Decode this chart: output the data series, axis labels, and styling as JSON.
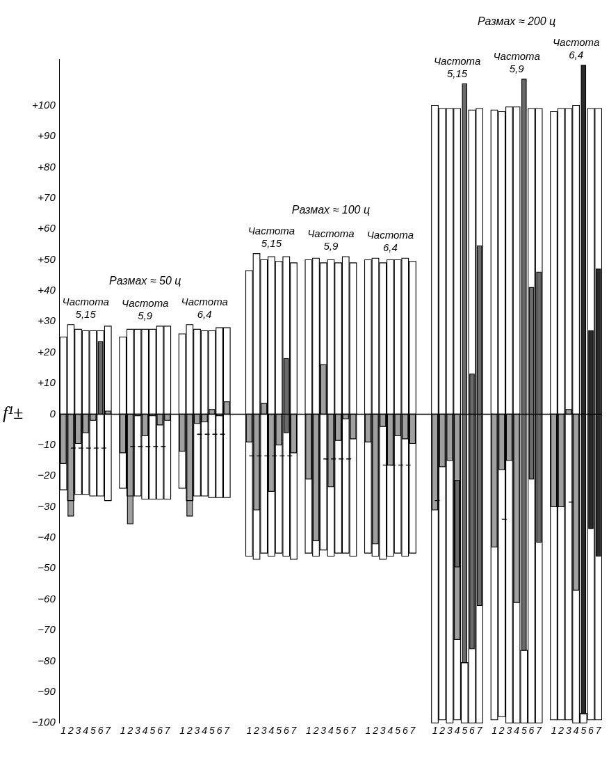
{
  "chart_data": {
    "type": "bar",
    "ylabel": "f¹±",
    "categories": [
      "1",
      "2",
      "3",
      "4",
      "5",
      "6",
      "7",
      null,
      "1",
      "2",
      "3",
      "4",
      "5",
      "6",
      "7",
      null,
      "1",
      "2",
      "3",
      "4",
      "5",
      "6",
      "7",
      null,
      null,
      "1",
      "2",
      "3",
      "4",
      "5",
      "6",
      "7",
      null,
      "1",
      "2",
      "3",
      "4",
      "5",
      "6",
      "7",
      null,
      "1",
      "2",
      "3",
      "4",
      "5",
      "6",
      "7",
      null,
      null,
      "1",
      "2",
      "3",
      "4",
      "5",
      "6",
      "7",
      null,
      "1",
      "2",
      "3",
      "4",
      "5",
      "6",
      "7",
      null,
      "1",
      "2",
      "3",
      "4",
      "5",
      "6",
      "7"
    ],
    "series": [
      {
        "color": "#ffffff",
        "base": [
          -24.5,
          -28,
          -26,
          -26,
          -26.5,
          -26.5,
          -28,
          null,
          -24,
          -26.5,
          -26.5,
          -27.5,
          -27.5,
          -27.5,
          -27.5,
          null,
          -24,
          -28,
          -26.5,
          -26.5,
          -27,
          -27,
          -27,
          null,
          null,
          -46,
          -47,
          -45,
          -46,
          -45,
          -46,
          -47,
          null,
          -45,
          -46,
          -44,
          -46,
          -45,
          -45,
          -46,
          null,
          -45,
          -46,
          -47,
          -46,
          -45,
          -46,
          -45,
          null,
          null,
          -100,
          -99,
          -100,
          -99,
          -100,
          -100,
          -100,
          null,
          -99,
          -98,
          -100,
          -100,
          -100,
          -100,
          -100,
          null,
          -99,
          -99,
          -99,
          -100,
          -100,
          -99,
          -99
        ],
        "values": [
          49.5,
          57,
          53.5,
          53,
          53.5,
          53.5,
          56.5,
          null,
          49,
          54,
          54,
          55,
          55,
          56,
          56,
          null,
          50,
          57,
          54,
          53.5,
          54,
          55,
          55,
          null,
          null,
          92.5,
          99,
          95,
          97,
          94.5,
          97,
          96,
          null,
          95,
          96.5,
          93,
          96,
          94,
          96,
          95,
          null,
          95,
          96.5,
          96,
          96,
          95,
          96.5,
          94.5,
          null,
          null,
          200,
          198,
          199,
          198,
          19.5,
          198.5,
          199,
          null,
          197.5,
          196,
          199.5,
          199.5,
          23.5,
          199,
          199,
          null,
          197,
          198,
          198,
          200,
          3,
          198,
          198
        ]
      },
      {
        "color": "#a0a0a0",
        "values": [
          -16,
          -33,
          -9.5,
          -6,
          -2,
          null,
          1,
          null,
          -12.5,
          -35.5,
          -0.5,
          -7,
          -0.5,
          -3.5,
          -2,
          null,
          -12,
          -33,
          -3,
          -2.5,
          1.5,
          -0.5,
          4,
          null,
          null,
          -9,
          -31,
          3.5,
          -25,
          -10,
          null,
          -12.5,
          null,
          -21,
          -41,
          16,
          -23.5,
          -8.5,
          -1.5,
          -8,
          null,
          -9,
          -42,
          -4,
          -16.5,
          -7,
          -8,
          -9.5,
          null,
          null,
          -31,
          -17,
          -15,
          -73,
          null,
          null,
          null,
          null,
          -43,
          -18,
          -15,
          -61,
          null,
          null,
          null,
          null,
          -30,
          -30,
          1.5,
          -57,
          null,
          null,
          null
        ]
      },
      {
        "base": [
          null,
          null,
          null,
          null,
          null,
          0,
          null,
          null,
          null,
          null,
          null,
          null,
          null,
          null,
          null,
          null,
          null,
          null,
          null,
          null,
          null,
          null,
          null,
          null,
          null,
          null,
          null,
          null,
          null,
          null,
          -6,
          null,
          null,
          null,
          null,
          null,
          null,
          null,
          null,
          null,
          null,
          null,
          null,
          null,
          null,
          null,
          null,
          null,
          null,
          null,
          null,
          null,
          null,
          -49.5,
          -80.5,
          -76,
          -62,
          null,
          null,
          null,
          null,
          null,
          -76.5,
          -21,
          -41.5,
          null,
          null,
          null,
          null,
          null,
          -97,
          -37,
          -46
        ],
        "values": [
          null,
          null,
          null,
          null,
          null,
          23.5,
          null,
          null,
          null,
          null,
          null,
          null,
          null,
          null,
          null,
          null,
          null,
          null,
          null,
          null,
          null,
          null,
          null,
          null,
          null,
          null,
          null,
          null,
          null,
          null,
          24,
          null,
          null,
          null,
          null,
          null,
          null,
          null,
          null,
          null,
          null,
          null,
          null,
          null,
          null,
          null,
          null,
          null,
          null,
          null,
          null,
          null,
          null,
          28,
          187.5,
          89,
          116.5,
          null,
          null,
          null,
          null,
          null,
          185,
          62,
          87.5,
          null,
          null,
          null,
          null,
          null,
          210,
          64,
          93
        ],
        "colors": [
          null,
          null,
          null,
          null,
          null,
          "#6a6a6a",
          null,
          null,
          null,
          null,
          null,
          null,
          null,
          null,
          null,
          null,
          null,
          null,
          null,
          null,
          null,
          null,
          null,
          null,
          null,
          null,
          null,
          null,
          null,
          null,
          "#6a6a6a",
          null,
          null,
          null,
          null,
          null,
          null,
          null,
          null,
          null,
          null,
          null,
          null,
          null,
          null,
          null,
          null,
          null,
          null,
          null,
          null,
          null,
          null,
          "#6a6a6a",
          "#6a6a6a",
          "#6a6a6a",
          "#6a6a6a",
          null,
          null,
          null,
          null,
          null,
          "#6a6a6a",
          "#6a6a6a",
          "#6a6a6a",
          null,
          null,
          null,
          null,
          null,
          "#2a2a2a",
          "#2a2a2a",
          "#2a2a2a"
        ]
      },
      {
        "type": "line",
        "color": "#000000",
        "values": [
          null,
          -11,
          -11,
          -11,
          -11,
          -11,
          -11,
          null,
          null,
          -10.5,
          -10.5,
          -10.5,
          -10.5,
          -10.5,
          -10.5,
          null,
          null,
          null,
          -6.5,
          -6.5,
          -6.5,
          -6.5,
          -6.5,
          null,
          null,
          -13.5,
          -13.5,
          -13.5,
          -13.5,
          -13.5,
          -13.5,
          -13.5,
          null,
          null,
          null,
          -14.5,
          -14.5,
          -14.5,
          -14.5,
          -14.5,
          null,
          null,
          null,
          -16.5,
          -16.5,
          -16.5,
          -16.5,
          -16.5,
          null,
          null,
          -28,
          -28,
          null,
          null,
          null,
          null,
          null,
          null,
          null,
          -34,
          -34,
          null,
          null,
          null,
          null,
          null,
          null,
          null,
          -28.5,
          -28.5,
          null,
          null,
          null
        ]
      }
    ],
    "ylim": [
      -100,
      115
    ],
    "yticks": [
      {
        "value": 100,
        "label": "+100"
      },
      {
        "value": 90,
        "label": "+90"
      },
      {
        "value": 80,
        "label": "+80"
      },
      {
        "value": 70,
        "label": "+70"
      },
      {
        "value": 60,
        "label": "+60"
      },
      {
        "value": 50,
        "label": "+50"
      },
      {
        "value": 40,
        "label": "+40"
      },
      {
        "value": 30,
        "label": "+30"
      },
      {
        "value": 20,
        "label": "+20"
      },
      {
        "value": 10,
        "label": "+10"
      },
      0,
      {
        "value": -10,
        "label": "−10"
      },
      {
        "value": -20,
        "label": "−20"
      },
      {
        "value": -30,
        "label": "−30"
      },
      {
        "value": -40,
        "label": "−40"
      },
      {
        "value": -50,
        "label": "−50"
      },
      {
        "value": -60,
        "label": "−60"
      },
      {
        "value": -70,
        "label": "−70"
      },
      {
        "value": -80,
        "label": "−80"
      },
      {
        "value": -90,
        "label": "−90"
      },
      {
        "value": -100,
        "label": "−100"
      }
    ],
    "ref_lines": [
      {
        "axis": "y",
        "value": 0
      }
    ],
    "annotations": [
      "Размах ≈ 50 ц",
      "Частота 5,15",
      "Частота 5,9",
      "Частота 6,4",
      "Размах ≈ 100 ц",
      "Частота 5,15",
      "Частота 5,9",
      "Частота 6,4",
      "Размах ≈ 200 ц",
      "Частота 5,15",
      "Частота 5,9",
      "Частота 6,4"
    ],
    "grid": false,
    "legend": false,
    "marker": "none",
    "line_style": "dashed"
  }
}
